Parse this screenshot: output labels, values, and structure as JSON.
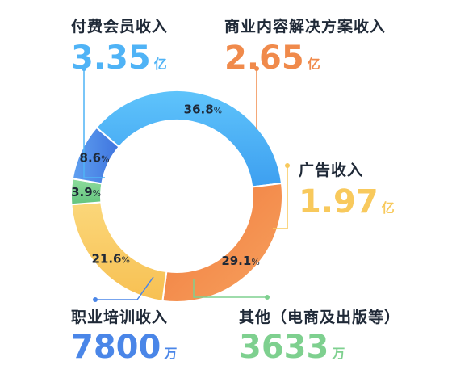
{
  "chart_data": {
    "type": "pie",
    "donut": true,
    "title": "",
    "slices": [
      {
        "label": "付费会员收入",
        "percent": "36.8",
        "value_number": "3.35",
        "value_unit": "亿",
        "color": "#4fb3f6"
      },
      {
        "label": "商业内容解决方案收入",
        "percent": "29.1",
        "value_number": "2.65",
        "value_unit": "亿",
        "color": "#f08a4b"
      },
      {
        "label": "广告收入",
        "percent": "21.6",
        "value_number": "1.97",
        "value_unit": "亿",
        "color": "#f8c95c"
      },
      {
        "label": "其他（电商及出版等）",
        "percent": "3.9",
        "value_number": "3633",
        "value_unit": "万",
        "color": "#7ed08f"
      },
      {
        "label": "职业培训收入",
        "percent": "8.6",
        "value_number": "7800",
        "value_unit": "万",
        "color": "#4a86e8"
      }
    ],
    "percent_suffix": "%",
    "legend": "callouts"
  }
}
